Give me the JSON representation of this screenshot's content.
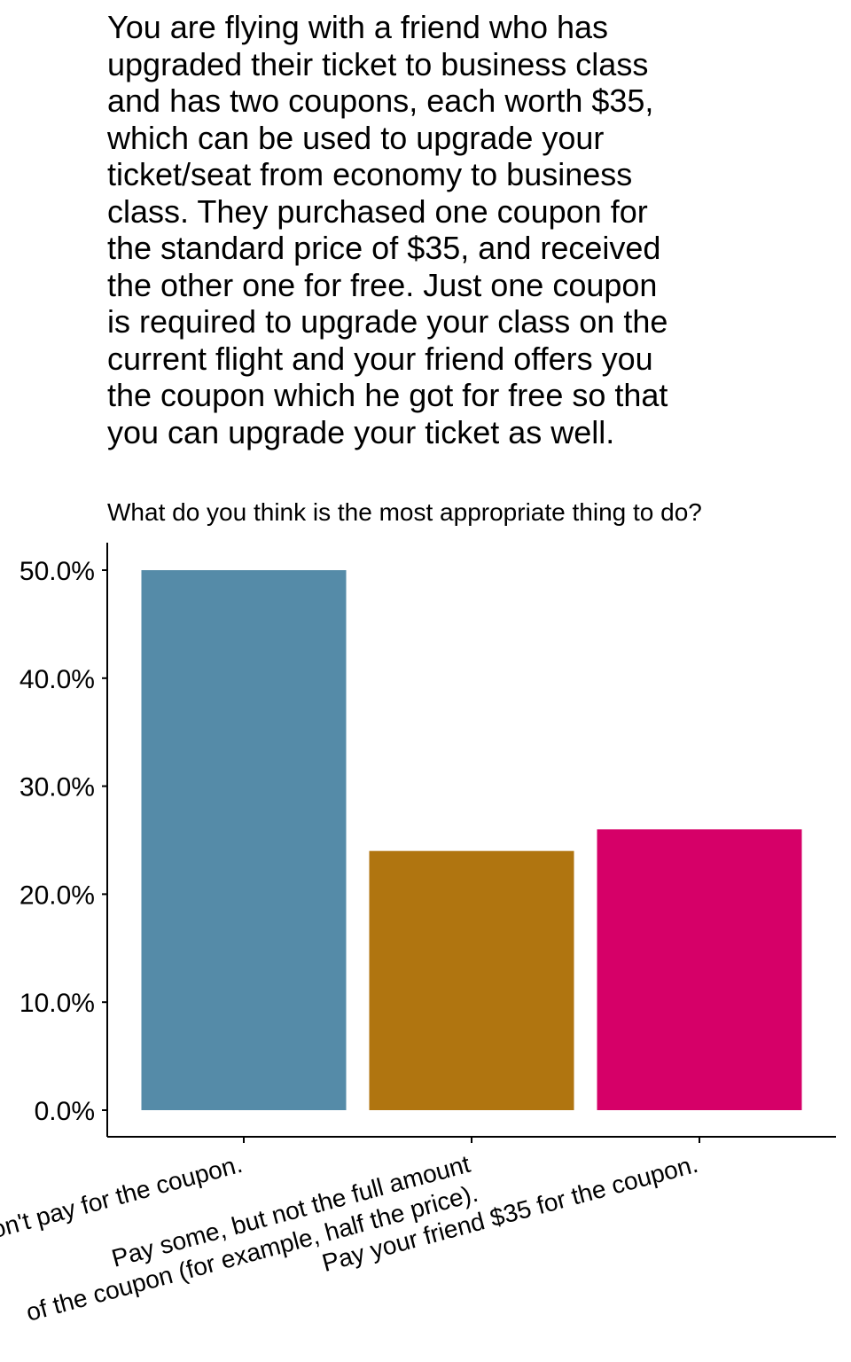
{
  "chart_data": {
    "type": "bar",
    "title_lines": [
      "You are flying with a friend who has",
      "upgraded their ticket to business class",
      "and has two coupons, each worth $35,",
      "which can be used to upgrade your",
      "ticket/seat from economy to business",
      "class. They purchased one coupon for",
      "the standard price of $35, and received",
      "the other one for free. Just one coupon",
      "is required to upgrade your class on the",
      "current flight and your friend offers you",
      "the coupon which he got for free so that",
      "you can upgrade your ticket as well."
    ],
    "subtitle": "What do you think is the most appropriate thing to do?",
    "categories": [
      [
        "Don't pay for the coupon."
      ],
      [
        "Pay some, but not the full amount",
        "of the coupon (for example, half the price)."
      ],
      [
        "Pay your friend $35 for the coupon."
      ]
    ],
    "values": [
      50.0,
      24.0,
      26.0
    ],
    "colors": [
      "#558BA8",
      "#B07510",
      "#D60068"
    ],
    "yticks": [
      "0.0%",
      "10.0%",
      "20.0%",
      "30.0%",
      "40.0%",
      "50.0%"
    ],
    "ylim": [
      0,
      52.5
    ],
    "grid": false,
    "legend": "none"
  }
}
